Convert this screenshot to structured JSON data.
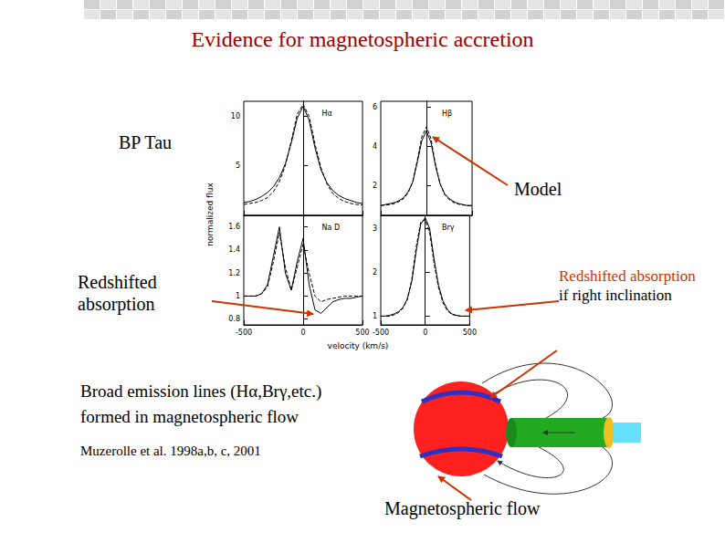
{
  "title": "Evidence for magnetospheric accretion",
  "star": "BP Tau",
  "model_label": "Model",
  "left_note": [
    "Redshifted",
    "absorption"
  ],
  "right_note": {
    "highlight": "Redshifted absorption",
    "rest": "if right inclination"
  },
  "body": [
    "Broad emission lines (Hα,Brγ,etc.)",
    "formed in magnetospheric flow"
  ],
  "reference": "Muzerolle et al. 1998a,b, c, 2001",
  "diagram_label": "Magnetospheric flow",
  "figure": {
    "xlabel": "velocity (km/s)",
    "ylabel": "normalized flux"
  },
  "chart_data": [
    {
      "type": "line",
      "title": "Hα",
      "x": [
        -500,
        -450,
        -400,
        -350,
        -300,
        -250,
        -200,
        -150,
        -100,
        -50,
        0,
        50,
        100,
        150,
        200,
        250,
        300,
        350,
        400,
        450,
        500
      ],
      "xlim": [
        -500,
        500
      ],
      "xticks": [
        -500,
        0,
        500
      ],
      "ylim": [
        0,
        11.5
      ],
      "yticks": [
        5,
        10
      ],
      "tick_labels": "y",
      "series": [
        {
          "color": "#000000",
          "line_style": "solid",
          "values": [
            1.3,
            1.4,
            1.6,
            1.9,
            2.3,
            2.9,
            3.8,
            5.2,
            7.3,
            9.8,
            11.0,
            9.6,
            6.8,
            4.6,
            3.3,
            2.5,
            2.0,
            1.7,
            1.5,
            1.3,
            1.2
          ]
        },
        {
          "color": "#000000",
          "line_style": "dashed",
          "values": [
            1.1,
            1.2,
            1.3,
            1.5,
            1.8,
            2.4,
            3.4,
            5.0,
            7.5,
            10.2,
            11.2,
            10.0,
            7.2,
            4.8,
            3.2,
            2.2,
            1.7,
            1.4,
            1.2,
            1.1,
            1.05
          ]
        }
      ]
    },
    {
      "type": "line",
      "title": "Hβ",
      "x": [
        -500,
        -450,
        -400,
        -350,
        -300,
        -250,
        -200,
        -150,
        -100,
        -50,
        0,
        50,
        100,
        150,
        200,
        250,
        300,
        350,
        400,
        450,
        500
      ],
      "xlim": [
        -500,
        500
      ],
      "xticks": [
        -500,
        0,
        500
      ],
      "ylim": [
        0.5,
        6.3
      ],
      "yticks": [
        2,
        4,
        6
      ],
      "tick_labels": "y",
      "series": [
        {
          "color": "#000000",
          "line_style": "solid",
          "values": [
            1.0,
            1.05,
            1.1,
            1.15,
            1.25,
            1.4,
            1.7,
            2.2,
            3.2,
            4.3,
            4.8,
            4.2,
            3.0,
            2.1,
            1.6,
            1.35,
            1.2,
            1.1,
            1.05,
            1.0,
            1.0
          ]
        },
        {
          "color": "#000000",
          "line_style": "dashed",
          "values": [
            1.0,
            1.02,
            1.05,
            1.1,
            1.2,
            1.35,
            1.65,
            2.2,
            3.3,
            4.5,
            5.0,
            4.4,
            3.1,
            2.1,
            1.55,
            1.3,
            1.15,
            1.07,
            1.03,
            1.0,
            1.0
          ]
        }
      ]
    },
    {
      "type": "line",
      "title": "Na D",
      "x": [
        -500,
        -450,
        -400,
        -350,
        -300,
        -250,
        -200,
        -150,
        -100,
        -50,
        0,
        50,
        100,
        150,
        200,
        250,
        300,
        350,
        400,
        450,
        500
      ],
      "xlim": [
        -500,
        500
      ],
      "xticks": [
        -500,
        0,
        500
      ],
      "ylim": [
        0.75,
        1.7
      ],
      "yticks": [
        0.8,
        1,
        1.2,
        1.4,
        1.6
      ],
      "series": [
        {
          "color": "#000000",
          "line_style": "solid",
          "values": [
            1.0,
            1.0,
            1.0,
            1.02,
            1.1,
            1.35,
            1.6,
            1.2,
            1.05,
            1.3,
            1.5,
            1.1,
            0.88,
            0.85,
            0.9,
            0.95,
            0.97,
            0.98,
            0.98,
            0.99,
            1.0
          ]
        },
        {
          "color": "#000000",
          "line_style": "dashed",
          "values": [
            1.0,
            1.0,
            1.0,
            1.02,
            1.08,
            1.3,
            1.55,
            1.25,
            1.05,
            1.25,
            1.45,
            1.2,
            1.0,
            0.95,
            0.97,
            0.98,
            0.99,
            1.0,
            1.0,
            1.0,
            1.0
          ]
        }
      ]
    },
    {
      "type": "line",
      "title": "Brγ",
      "x": [
        -500,
        -450,
        -400,
        -350,
        -300,
        -250,
        -200,
        -150,
        -100,
        -50,
        0,
        50,
        100,
        150,
        200,
        250,
        300,
        350,
        400,
        450,
        500
      ],
      "xlim": [
        -500,
        500
      ],
      "xticks": [
        -500,
        0,
        500
      ],
      "ylim": [
        0.8,
        3.3
      ],
      "yticks": [
        1,
        2,
        3
      ],
      "series": [
        {
          "color": "#000000",
          "line_style": "solid",
          "values": [
            1.0,
            1.0,
            1.02,
            1.05,
            1.1,
            1.2,
            1.4,
            1.8,
            2.5,
            3.1,
            3.25,
            3.0,
            2.3,
            1.7,
            1.35,
            1.15,
            1.05,
            1.02,
            1.0,
            1.0,
            1.0
          ]
        },
        {
          "color": "#000000",
          "line_style": "dashed",
          "values": [
            1.0,
            1.0,
            1.0,
            1.03,
            1.08,
            1.18,
            1.38,
            1.85,
            2.6,
            3.15,
            3.2,
            2.9,
            2.2,
            1.65,
            1.3,
            1.12,
            1.04,
            1.01,
            1.0,
            1.0,
            1.0
          ]
        }
      ]
    }
  ]
}
